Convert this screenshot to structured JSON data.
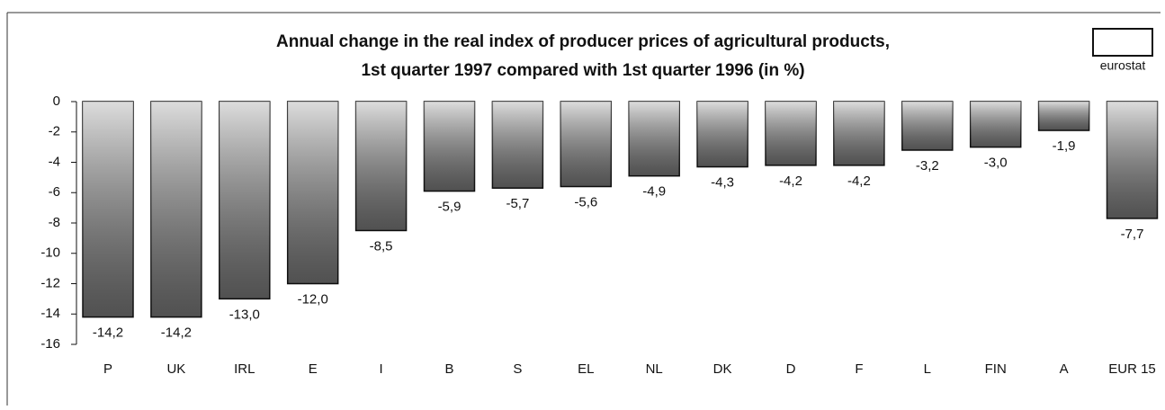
{
  "chart_data": {
    "type": "bar",
    "title": [
      "Annual change in the real index of producer prices of agricultural products,",
      "1st quarter 1997 compared with 1st quarter 1996 (in %)"
    ],
    "logo": "eurostat",
    "categories": [
      "P",
      "UK",
      "IRL",
      "E",
      "I",
      "B",
      "S",
      "EL",
      "NL",
      "DK",
      "D",
      "F",
      "L",
      "FIN",
      "A",
      "EUR 15"
    ],
    "values": [
      -14.2,
      -14.2,
      -13.0,
      -12.0,
      -8.5,
      -5.9,
      -5.7,
      -5.6,
      -4.9,
      -4.3,
      -4.2,
      -4.2,
      -3.2,
      -3.0,
      -1.9,
      -7.7
    ],
    "value_labels": [
      "-14,2",
      "-14,2",
      "-13,0",
      "-12,0",
      "-8,5",
      "-5,9",
      "-5,7",
      "-5,6",
      "-4,9",
      "-4,3",
      "-4,2",
      "-4,2",
      "-3,2",
      "-3,0",
      "-1,9",
      "-7,7"
    ],
    "color": "#8c8c8c",
    "ylim": [
      -16,
      0
    ],
    "yticks": [
      0,
      -2,
      -4,
      -6,
      -8,
      -10,
      -12,
      -14,
      -16
    ],
    "grid": false
  }
}
